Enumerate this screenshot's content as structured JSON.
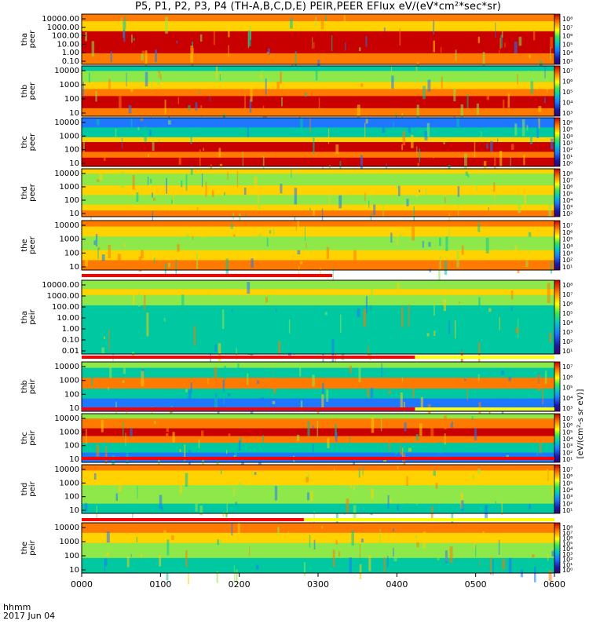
{
  "title": "P5, P1, P2, P3, P4 (TH-A,B,C,D,E) PEIR,PEER EFlux eV/(eV*cm²*sec*sr)",
  "time_axis": {
    "unit_label": "hhmm",
    "date_label": "2017 Jun 04",
    "ticks": [
      "0000",
      "0100",
      "0200",
      "0300",
      "0400",
      "0500",
      "0600"
    ]
  },
  "colors": {
    "saturated": "#c80000",
    "high": "#ff7a00",
    "mid_high": "#ffd200",
    "mid": "#8fe84a",
    "mid_low": "#00c8a0",
    "low": "#1e78ff",
    "very_low": "#1a1aa8",
    "status_red": "#ff0000",
    "status_yellow": "#ffff00",
    "sensor_bar": "#ff8c00"
  },
  "colorbar_labels": {
    "a": [
      "10⁸",
      "10⁷",
      "10⁶",
      "10⁵",
      "10⁴",
      "10³"
    ],
    "b": [
      "10⁷",
      "10⁶",
      "10⁵",
      "10⁴",
      "10³"
    ],
    "c": [
      "10⁶",
      "10⁵",
      "10⁴",
      "10³",
      "10²",
      "10¹",
      "10⁰"
    ],
    "d": [
      "10⁸",
      "10⁷",
      "10⁶",
      "10⁵",
      "10⁴",
      "10³",
      "10²"
    ],
    "e": [
      "10⁷",
      "10⁶",
      "10⁵",
      "10⁴",
      "10³",
      "10²",
      "10¹"
    ],
    "f": [
      "10⁸",
      "10⁷",
      "10⁶",
      "10⁵",
      "10⁴",
      "10³",
      "10²",
      "10¹"
    ],
    "g": [
      "10⁷",
      "10⁶",
      "10⁵",
      "10⁴",
      "10³"
    ],
    "h": [
      "10⁸",
      "10⁷",
      "10⁶",
      "10⁵",
      "10⁴",
      "10³",
      "10²",
      "10¹",
      "10⁰"
    ]
  },
  "colorbar_unit_text": "[eV/(cm²-s sr eV)]",
  "chart_data": [
    {
      "type": "heatmap",
      "probe": "tha",
      "species": "peer",
      "ylabel": "tha peer",
      "yticks": [
        "10000.00",
        "1000.00",
        "100.00",
        "10.00",
        "1.00",
        "0.10"
      ],
      "colorbar": "a"
    },
    {
      "type": "heatmap",
      "probe": "thb",
      "species": "peer",
      "ylabel": "thb peer",
      "yticks": [
        "10000",
        "1000",
        "100",
        "10"
      ],
      "colorbar": "b"
    },
    {
      "type": "heatmap",
      "probe": "thc",
      "species": "peer",
      "ylabel": "thc peer",
      "yticks": [
        "10000",
        "1000",
        "100",
        "10"
      ],
      "colorbar": "c"
    },
    {
      "type": "heatmap",
      "probe": "thd",
      "species": "peer",
      "ylabel": "thd peer",
      "yticks": [
        "10000",
        "1000",
        "100",
        "10"
      ],
      "colorbar": "d"
    },
    {
      "type": "heatmap",
      "probe": "the",
      "species": "peer",
      "ylabel": "the peer",
      "yticks": [
        "10000",
        "1000",
        "100",
        "10"
      ],
      "colorbar": "e"
    },
    {
      "type": "heatmap",
      "probe": "tha",
      "species": "peir",
      "ylabel": "tha peir",
      "yticks": [
        "10000.00",
        "1000.00",
        "100.00",
        "10.00",
        "1.00",
        "0.10",
        "0.01"
      ],
      "colorbar": "f"
    },
    {
      "type": "heatmap",
      "probe": "thb",
      "species": "peir",
      "ylabel": "thb peir",
      "yticks": [
        "10000",
        "1000",
        "100",
        "10"
      ],
      "colorbar": "g"
    },
    {
      "type": "heatmap",
      "probe": "thc",
      "species": "peir",
      "ylabel": "thc peir",
      "yticks": [
        "10000",
        "1000",
        "100",
        "10"
      ],
      "colorbar": "e"
    },
    {
      "type": "heatmap",
      "probe": "thd",
      "species": "peir",
      "ylabel": "thd peir",
      "yticks": [
        "10000",
        "1000",
        "100",
        "10"
      ],
      "colorbar": "e"
    },
    {
      "type": "heatmap",
      "probe": "the",
      "species": "peir",
      "ylabel": "the peir",
      "yticks": [
        "10000",
        "1000",
        "100",
        "10"
      ],
      "colorbar": "h"
    }
  ]
}
